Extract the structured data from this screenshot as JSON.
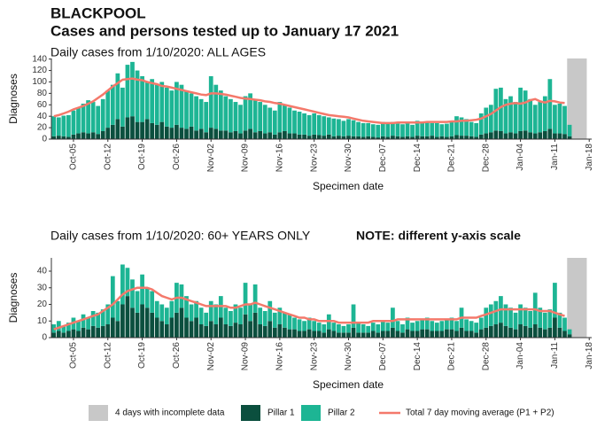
{
  "header": {
    "title": "BLACKPOOL",
    "subtitle": "Cases and persons tested up to January 17 2021"
  },
  "chart_data": [
    {
      "type": "bar",
      "stacked": true,
      "title": "Daily cases from 1/10/2020: ALL AGES",
      "y_label": "Diagnoses",
      "x_label": "Specimen date",
      "categories": [
        null,
        null,
        null,
        null,
        "Oct-05",
        null,
        null,
        null,
        null,
        null,
        null,
        "Oct-12",
        null,
        null,
        null,
        null,
        null,
        null,
        "Oct-19",
        null,
        null,
        null,
        null,
        null,
        null,
        "Oct-26",
        null,
        null,
        null,
        null,
        null,
        null,
        "Nov-02",
        null,
        null,
        null,
        null,
        null,
        null,
        "Nov-09",
        null,
        null,
        null,
        null,
        null,
        null,
        "Nov-16",
        null,
        null,
        null,
        null,
        null,
        null,
        "Nov-23",
        null,
        null,
        null,
        null,
        null,
        null,
        "Nov-30",
        null,
        null,
        null,
        null,
        null,
        null,
        "Dec-07",
        null,
        null,
        null,
        null,
        null,
        null,
        "Dec-14",
        null,
        null,
        null,
        null,
        null,
        null,
        "Dec-21",
        null,
        null,
        null,
        null,
        null,
        null,
        "Dec-28",
        null,
        null,
        null,
        null,
        null,
        null,
        "Jan-04",
        null,
        null,
        null,
        null,
        null,
        null,
        "Jan-11",
        null,
        null,
        null,
        null,
        null,
        null,
        "Jan-18"
      ],
      "ylim": [
        0,
        141
      ],
      "yticks": [
        0,
        20,
        40,
        60,
        80,
        100,
        120,
        140
      ],
      "incomplete": {
        "name": "4 days with incomplete data",
        "color": "#c8c8c8",
        "days": 4
      },
      "series": [
        {
          "name": "Pillar 1",
          "color": "#0b4f3e",
          "values": [
            5,
            6,
            5,
            4,
            8,
            10,
            12,
            10,
            12,
            9,
            14,
            20,
            25,
            35,
            22,
            38,
            40,
            30,
            30,
            35,
            28,
            25,
            30,
            22,
            20,
            25,
            20,
            18,
            22,
            15,
            18,
            12,
            20,
            18,
            15,
            15,
            12,
            14,
            10,
            15,
            18,
            12,
            14,
            10,
            12,
            8,
            12,
            14,
            10,
            10,
            8,
            8,
            6,
            8,
            7,
            6,
            8,
            5,
            6,
            5,
            6,
            5,
            5,
            4,
            5,
            4,
            3,
            5,
            4,
            6,
            5,
            4,
            5,
            4,
            6,
            5,
            5,
            6,
            4,
            5,
            4,
            5,
            7,
            6,
            6,
            5,
            4,
            8,
            10,
            12,
            15,
            14,
            10,
            12,
            10,
            14,
            15,
            12,
            10,
            12,
            14,
            18,
            10,
            10,
            9,
            5,
            null,
            null,
            null,
            null
          ]
        },
        {
          "name": "Pillar 2",
          "color": "#1db594",
          "values": [
            35,
            32,
            36,
            38,
            42,
            45,
            50,
            58,
            53,
            49,
            56,
            65,
            70,
            80,
            68,
            92,
            95,
            90,
            80,
            65,
            77,
            70,
            70,
            68,
            65,
            75,
            75,
            67,
            58,
            60,
            52,
            53,
            90,
            77,
            70,
            60,
            58,
            51,
            50,
            60,
            62,
            58,
            51,
            50,
            43,
            42,
            53,
            46,
            45,
            40,
            40,
            37,
            36,
            37,
            35,
            34,
            30,
            31,
            29,
            27,
            29,
            28,
            25,
            24,
            23,
            22,
            22,
            25,
            24,
            24,
            22,
            22,
            23,
            21,
            26,
            25,
            25,
            22,
            24,
            21,
            23,
            25,
            33,
            32,
            29,
            25,
            24,
            37,
            45,
            48,
            73,
            76,
            60,
            63,
            55,
            76,
            70,
            58,
            50,
            53,
            61,
            87,
            50,
            52,
            49,
            20,
            null,
            null,
            null,
            null
          ]
        },
        {
          "name": "Total 7 day moving average (P1 + P2)",
          "type": "line",
          "color": "#f4796b",
          "values": [
            40,
            42,
            45,
            48,
            52,
            55,
            58,
            62,
            66,
            72,
            78,
            85,
            92,
            98,
            104,
            105,
            106,
            104,
            103,
            100,
            98,
            96,
            93,
            92,
            90,
            88,
            86,
            84,
            82,
            80,
            78,
            77,
            80,
            80,
            79,
            78,
            76,
            74,
            72,
            71,
            70,
            69,
            68,
            66,
            65,
            63,
            62,
            60,
            58,
            56,
            54,
            52,
            50,
            48,
            46,
            44,
            42,
            41,
            40,
            39,
            38,
            36,
            34,
            32,
            31,
            30,
            29,
            28,
            28,
            28,
            29,
            29,
            29,
            29,
            29,
            29,
            30,
            30,
            30,
            30,
            30,
            31,
            31,
            32,
            32,
            33,
            34,
            36,
            40,
            44,
            50,
            56,
            60,
            62,
            63,
            62,
            64,
            68,
            70,
            66,
            64,
            67,
            66,
            64,
            63,
            null,
            null,
            null,
            null,
            null
          ]
        }
      ]
    },
    {
      "type": "bar",
      "stacked": true,
      "title": "Daily cases from 1/10/2020: 60+ YEARS ONLY",
      "note": "NOTE: different y-axis scale",
      "y_label": "Diagnoses",
      "x_label": "Specimen date",
      "categories": [
        null,
        null,
        null,
        null,
        "Oct-05",
        null,
        null,
        null,
        null,
        null,
        null,
        "Oct-12",
        null,
        null,
        null,
        null,
        null,
        null,
        "Oct-19",
        null,
        null,
        null,
        null,
        null,
        null,
        "Oct-26",
        null,
        null,
        null,
        null,
        null,
        null,
        "Nov-02",
        null,
        null,
        null,
        null,
        null,
        null,
        "Nov-09",
        null,
        null,
        null,
        null,
        null,
        null,
        "Nov-16",
        null,
        null,
        null,
        null,
        null,
        null,
        "Nov-23",
        null,
        null,
        null,
        null,
        null,
        null,
        "Nov-30",
        null,
        null,
        null,
        null,
        null,
        null,
        "Dec-07",
        null,
        null,
        null,
        null,
        null,
        null,
        "Dec-14",
        null,
        null,
        null,
        null,
        null,
        null,
        "Dec-21",
        null,
        null,
        null,
        null,
        null,
        null,
        "Dec-28",
        null,
        null,
        null,
        null,
        null,
        null,
        "Jan-04",
        null,
        null,
        null,
        null,
        null,
        null,
        "Jan-11",
        null,
        null,
        null,
        null,
        null,
        null,
        "Jan-18"
      ],
      "ylim": [
        0,
        48
      ],
      "yticks": [
        0,
        10,
        20,
        30,
        40
      ],
      "incomplete": {
        "color": "#c8c8c8",
        "days": 4
      },
      "series": [
        {
          "color": "#0b4f3e",
          "values": [
            3,
            4,
            3,
            4,
            5,
            4,
            6,
            5,
            7,
            6,
            7,
            8,
            12,
            10,
            20,
            25,
            18,
            15,
            20,
            18,
            15,
            12,
            10,
            8,
            12,
            15,
            18,
            12,
            10,
            12,
            8,
            7,
            10,
            8,
            12,
            8,
            7,
            9,
            8,
            14,
            10,
            15,
            8,
            7,
            10,
            6,
            8,
            6,
            5,
            5,
            4,
            4,
            5,
            4,
            4,
            3,
            5,
            4,
            3,
            3,
            3,
            6,
            3,
            3,
            3,
            4,
            3,
            4,
            4,
            6,
            4,
            3,
            5,
            4,
            4,
            5,
            5,
            4,
            4,
            4,
            5,
            5,
            4,
            6,
            4,
            4,
            3,
            5,
            6,
            7,
            8,
            9,
            7,
            6,
            5,
            8,
            7,
            6,
            8,
            6,
            5,
            6,
            12,
            6,
            4,
            2,
            null,
            null,
            null,
            null
          ]
        },
        {
          "color": "#1db594",
          "values": [
            5,
            6,
            4,
            5,
            7,
            6,
            8,
            7,
            9,
            9,
            10,
            12,
            25,
            12,
            24,
            17,
            17,
            13,
            18,
            12,
            13,
            10,
            10,
            10,
            10,
            18,
            14,
            13,
            10,
            10,
            10,
            8,
            12,
            12,
            13,
            10,
            9,
            11,
            10,
            19,
            10,
            17,
            10,
            9,
            12,
            9,
            10,
            9,
            9,
            7,
            7,
            6,
            7,
            6,
            5,
            5,
            9,
            5,
            5,
            4,
            5,
            14,
            6,
            5,
            4,
            5,
            5,
            6,
            5,
            12,
            6,
            5,
            7,
            5,
            6,
            6,
            7,
            6,
            5,
            6,
            6,
            7,
            6,
            12,
            7,
            6,
            6,
            7,
            12,
            13,
            14,
            16,
            13,
            12,
            10,
            12,
            11,
            10,
            19,
            12,
            10,
            11,
            21,
            9,
            8,
            3,
            null,
            null,
            null,
            null
          ]
        },
        {
          "type": "line",
          "color": "#f4796b",
          "values": [
            5,
            6,
            7,
            8,
            9,
            10,
            11,
            12,
            13,
            14,
            16,
            18,
            20,
            23,
            26,
            28,
            29,
            30,
            30,
            30,
            29,
            27,
            25,
            24,
            23,
            24,
            24,
            23,
            22,
            21,
            20,
            19,
            19,
            19,
            19,
            19,
            18,
            18,
            19,
            20,
            20,
            21,
            20,
            19,
            18,
            17,
            16,
            15,
            14,
            13,
            12,
            12,
            11,
            11,
            10,
            10,
            10,
            10,
            9,
            9,
            9,
            9,
            9,
            9,
            9,
            10,
            10,
            10,
            10,
            10,
            11,
            11,
            11,
            11,
            11,
            11,
            11,
            11,
            11,
            11,
            11,
            11,
            11,
            12,
            12,
            12,
            12,
            13,
            14,
            15,
            16,
            17,
            17,
            17,
            17,
            17,
            17,
            17,
            17,
            16,
            16,
            16,
            15,
            14,
            13,
            null,
            null,
            null,
            null,
            null
          ]
        }
      ]
    }
  ]
}
